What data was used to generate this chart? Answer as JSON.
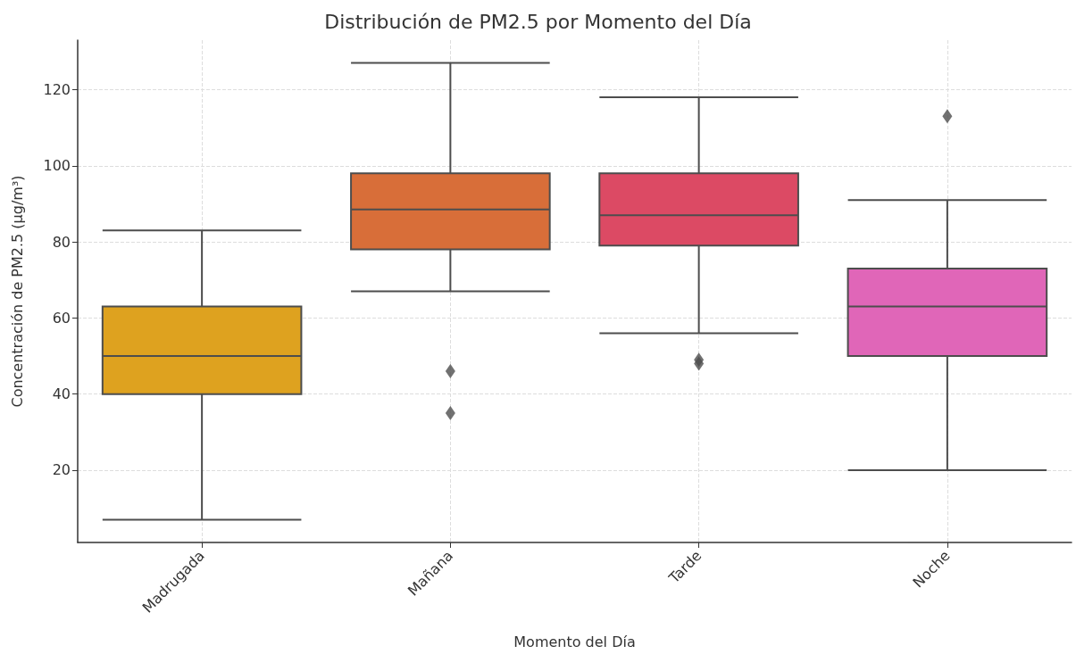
{
  "chart_data": {
    "type": "box",
    "title": "Distribución de PM2.5 por Momento del Día",
    "xlabel": "Momento del Día",
    "ylabel": "Concentración de PM2.5 (µg/m³)",
    "categories": [
      "Madrugada",
      "Mañana",
      "Tarde",
      "Noche"
    ],
    "colors": [
      "#dea21f",
      "#d86e39",
      "#dc4a64",
      "#e066b8"
    ],
    "boxes": [
      {
        "low": 7,
        "q1": 40,
        "median": 50,
        "q3": 63,
        "high": 83
      },
      {
        "low": 67,
        "q1": 78,
        "median": 88.5,
        "q3": 98,
        "high": 127,
        "outliers": [
          46,
          35
        ]
      },
      {
        "low": 56,
        "q1": 79,
        "median": 87,
        "q3": 98,
        "high": 118,
        "outliers": [
          49,
          48
        ]
      },
      {
        "low": 20,
        "q1": 50,
        "median": 63,
        "q3": 73,
        "high": 91,
        "outliers": [
          113
        ]
      }
    ],
    "ylim": [
      1,
      133
    ],
    "yticks": [
      20,
      40,
      60,
      80,
      100,
      120
    ],
    "grid": true,
    "marker": "diamond"
  }
}
